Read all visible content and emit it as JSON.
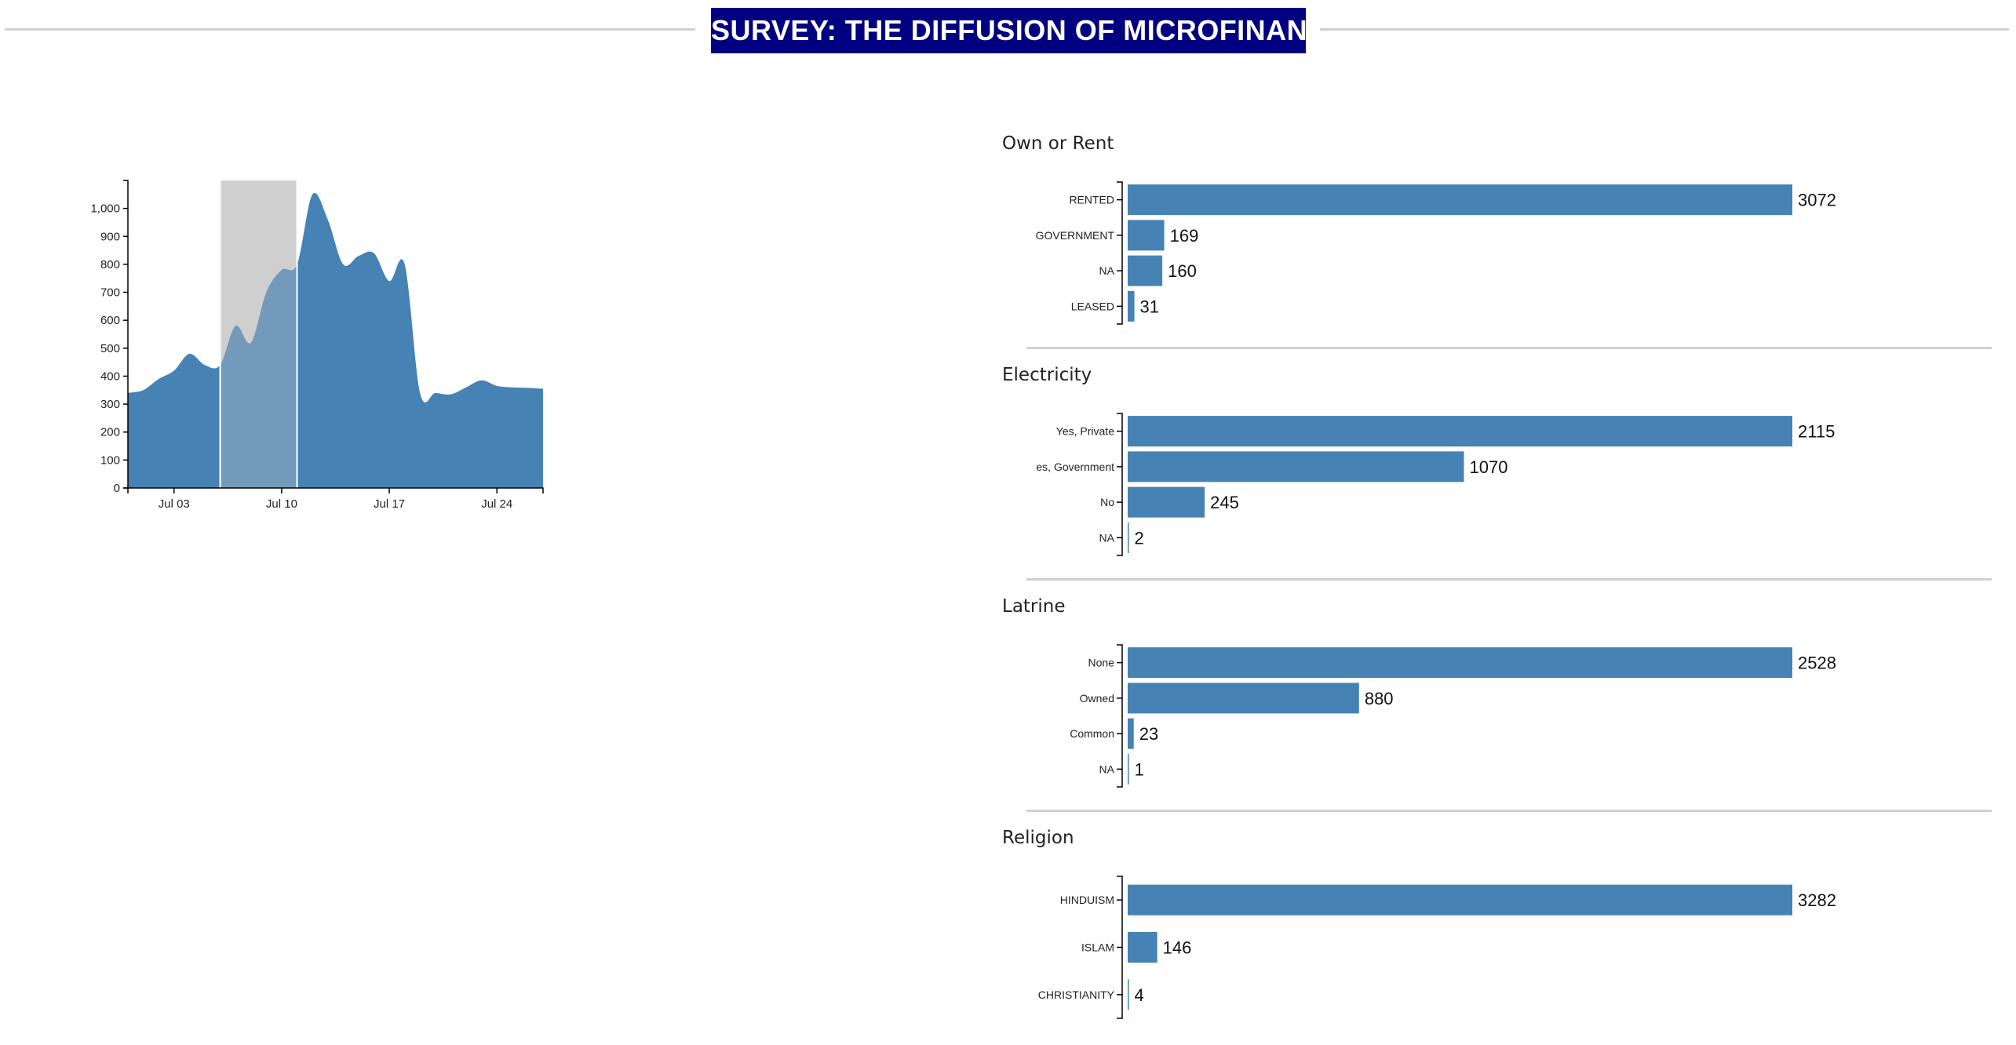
{
  "header": {
    "title": "SURVEY: THE DIFFUSION OF MICROFINANCE"
  },
  "colors": {
    "bar": "#4682b4",
    "brush": "#d3d3d3",
    "title_bg": "#000080",
    "axis": "#000000"
  },
  "chart_data": [
    {
      "type": "area",
      "title": "",
      "xlabel": "",
      "ylabel": "",
      "x_range": [
        "2016-06-30",
        "2016-07-27"
      ],
      "ylim": [
        0,
        1100
      ],
      "y_ticks": [
        0,
        100,
        200,
        300,
        400,
        500,
        600,
        700,
        800,
        900,
        1000
      ],
      "y_tick_labels": [
        "0",
        "100",
        "200",
        "300",
        "400",
        "500",
        "600",
        "700",
        "800",
        "900",
        "1,000"
      ],
      "x_ticks": [
        "2016-07-03",
        "2016-07-10",
        "2016-07-17",
        "2016-07-24"
      ],
      "x_tick_labels": [
        "Jul 03",
        "Jul 10",
        "Jul 17",
        "Jul 24"
      ],
      "brush": [
        "2016-07-06",
        "2016-07-11"
      ],
      "x": [
        "2016-07-01",
        "2016-07-02",
        "2016-07-03",
        "2016-07-04",
        "2016-07-05",
        "2016-07-06",
        "2016-07-07",
        "2016-07-08",
        "2016-07-09",
        "2016-07-10",
        "2016-07-11",
        "2016-07-12",
        "2016-07-13",
        "2016-07-14",
        "2016-07-15",
        "2016-07-16",
        "2016-07-17",
        "2016-07-18",
        "2016-07-19",
        "2016-07-20",
        "2016-07-21",
        "2016-07-22",
        "2016-07-23",
        "2016-07-24",
        "2016-07-25",
        "2016-07-26",
        "2016-07-27"
      ],
      "values": [
        350,
        390,
        420,
        480,
        440,
        440,
        580,
        520,
        700,
        780,
        800,
        1050,
        960,
        800,
        830,
        840,
        740,
        800,
        340,
        340,
        335,
        360,
        385,
        365,
        360,
        358,
        355
      ]
    },
    {
      "type": "bar",
      "orientation": "horizontal",
      "title": "Own or Rent",
      "categories": [
        "RENTED",
        "GOVERNMENT",
        "NA",
        "LEASED"
      ],
      "values": [
        3072,
        169,
        160,
        31
      ]
    },
    {
      "type": "bar",
      "orientation": "horizontal",
      "title": "Electricity",
      "categories": [
        "Yes, Private",
        "es, Government",
        "No",
        "NA"
      ],
      "values": [
        2115,
        1070,
        245,
        2
      ]
    },
    {
      "type": "bar",
      "orientation": "horizontal",
      "title": "Latrine",
      "categories": [
        "None",
        "Owned",
        "Common",
        "NA"
      ],
      "values": [
        2528,
        880,
        23,
        1
      ]
    },
    {
      "type": "bar",
      "orientation": "horizontal",
      "title": "Religion",
      "categories": [
        "HINDUISM",
        "ISLAM",
        "CHRISTIANITY"
      ],
      "values": [
        3282,
        146,
        4
      ]
    }
  ]
}
